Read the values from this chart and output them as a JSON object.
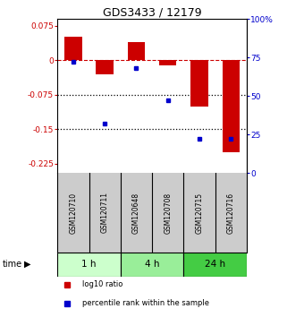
{
  "title": "GDS3433 / 12179",
  "samples": [
    "GSM120710",
    "GSM120711",
    "GSM120648",
    "GSM120708",
    "GSM120715",
    "GSM120716"
  ],
  "log10_ratio": [
    0.051,
    -0.03,
    0.04,
    -0.01,
    -0.1,
    -0.2
  ],
  "percentile_rank": [
    72,
    32,
    68,
    47,
    22,
    22
  ],
  "bar_color": "#cc0000",
  "dot_color": "#0000cc",
  "ylim_left": [
    -0.245,
    0.09
  ],
  "ylim_right": [
    0,
    100
  ],
  "yticks_left": [
    0.075,
    0,
    -0.075,
    -0.15,
    -0.225
  ],
  "yticks_right": [
    100,
    75,
    50,
    25,
    0
  ],
  "hline_y": 0,
  "dotted_lines": [
    -0.075,
    -0.15
  ],
  "time_groups": [
    {
      "label": "1 h",
      "samples": [
        0,
        1
      ],
      "color": "#ccffcc"
    },
    {
      "label": "4 h",
      "samples": [
        2,
        3
      ],
      "color": "#99ee99"
    },
    {
      "label": "24 h",
      "samples": [
        4,
        5
      ],
      "color": "#44cc44"
    }
  ],
  "legend_items": [
    {
      "label": "log10 ratio",
      "color": "#cc0000"
    },
    {
      "label": "percentile rank within the sample",
      "color": "#0000cc"
    }
  ],
  "time_label": "time",
  "background_color": "#ffffff",
  "plot_bg": "#ffffff",
  "bar_width": 0.55
}
